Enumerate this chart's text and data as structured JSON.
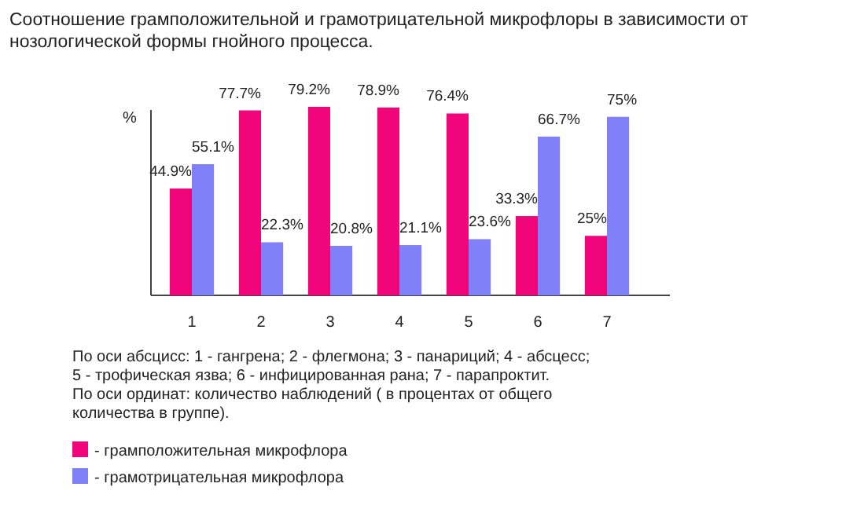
{
  "chart_data": {
    "type": "bar",
    "title": "Соотношение грамположительной и грамотрицательной микрофлоры в зависимости от нозологической формы гнойного процесса.",
    "ylabel": "%",
    "categories": [
      "1",
      "2",
      "3",
      "4",
      "5",
      "6",
      "7"
    ],
    "series": [
      {
        "name": "- грамположительная микрофлора",
        "color": "#f0067a",
        "values": [
          44.9,
          77.7,
          79.2,
          78.9,
          76.4,
          33.3,
          25
        ],
        "value_labels": [
          "44.9%",
          "77.7%",
          "79.2%",
          "78.9%",
          "76.4%",
          "33.3%",
          "25%"
        ]
      },
      {
        "name": "- грамотрицательная микрофлора",
        "color": "#8080f8",
        "values": [
          55.1,
          22.3,
          20.8,
          21.1,
          23.6,
          66.7,
          75
        ],
        "value_labels": [
          "55.1%",
          "22.3%",
          "20.8%",
          "21.1%",
          "23.6%",
          "66.7%",
          "75%"
        ]
      }
    ],
    "legend": "bottom left",
    "annotations": [
      "По оси абсцисс: 1 - гангрена; 2 - флегмона; 3 - панариций; 4 - абсцесс;",
      "5 - трофическая язва; 6 - инфицированная рана; 7 - парапроктит.",
      "По оси ординат: количество наблюдений ( в процентах от общего",
      "количества в группе)."
    ]
  }
}
